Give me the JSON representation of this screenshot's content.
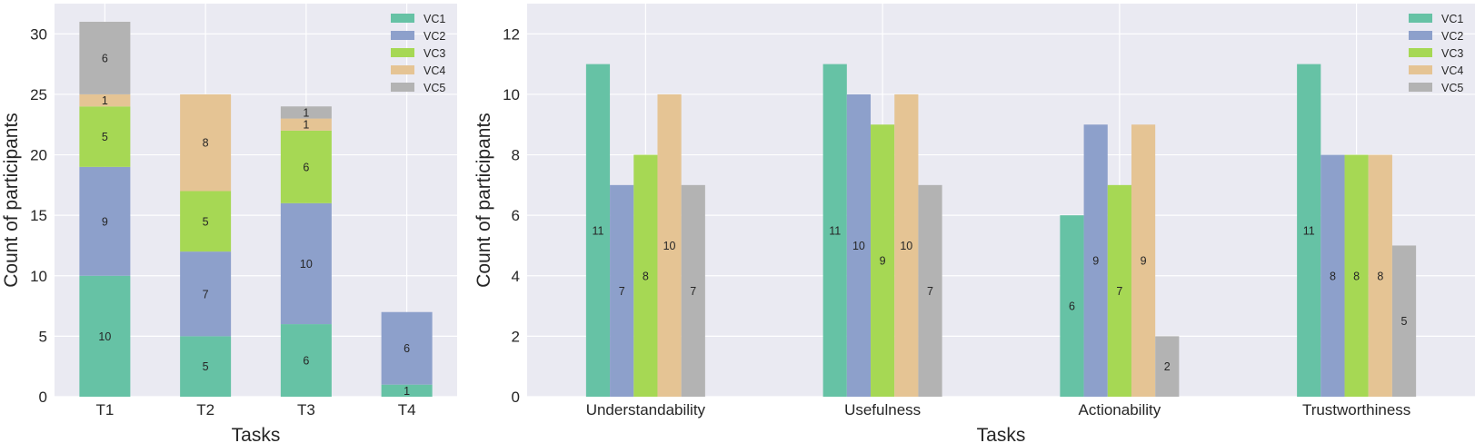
{
  "chart_data": [
    {
      "type": "bar",
      "stacked": true,
      "xlabel": "Tasks",
      "ylabel": "Count of participants",
      "ylim": [
        0,
        32.5
      ],
      "yticks": [
        0,
        5,
        10,
        15,
        20,
        25,
        30
      ],
      "categories": [
        "T1",
        "T2",
        "T3",
        "T4"
      ],
      "series": [
        {
          "name": "VC1",
          "color": "#66c2a5",
          "values": [
            10,
            5,
            6,
            1
          ]
        },
        {
          "name": "VC2",
          "color": "#8da0cb",
          "values": [
            9,
            7,
            10,
            6
          ]
        },
        {
          "name": "VC3",
          "color": "#a6d854",
          "values": [
            5,
            5,
            6,
            0
          ]
        },
        {
          "name": "VC4",
          "color": "#e5c494",
          "values": [
            1,
            8,
            1,
            0
          ]
        },
        {
          "name": "VC5",
          "color": "#b3b3b3",
          "values": [
            6,
            0,
            1,
            0
          ]
        }
      ],
      "legend": "top-right",
      "grid": true
    },
    {
      "type": "bar",
      "stacked": false,
      "xlabel": "Tasks",
      "ylabel": "Count of participants",
      "ylim": [
        0,
        13
      ],
      "yticks": [
        0,
        2,
        4,
        6,
        8,
        10,
        12
      ],
      "categories": [
        "Understandability",
        "Usefulness",
        "Actionability",
        "Trustworthiness"
      ],
      "series": [
        {
          "name": "VC1",
          "color": "#66c2a5",
          "values": [
            11,
            11,
            6,
            11
          ]
        },
        {
          "name": "VC2",
          "color": "#8da0cb",
          "values": [
            7,
            10,
            9,
            8
          ]
        },
        {
          "name": "VC3",
          "color": "#a6d854",
          "values": [
            8,
            9,
            7,
            8
          ]
        },
        {
          "name": "VC4",
          "color": "#e5c494",
          "values": [
            10,
            10,
            9,
            8
          ]
        },
        {
          "name": "VC5",
          "color": "#b3b3b3",
          "values": [
            7,
            7,
            2,
            5
          ]
        }
      ],
      "legend": "top-right",
      "grid": true
    }
  ]
}
